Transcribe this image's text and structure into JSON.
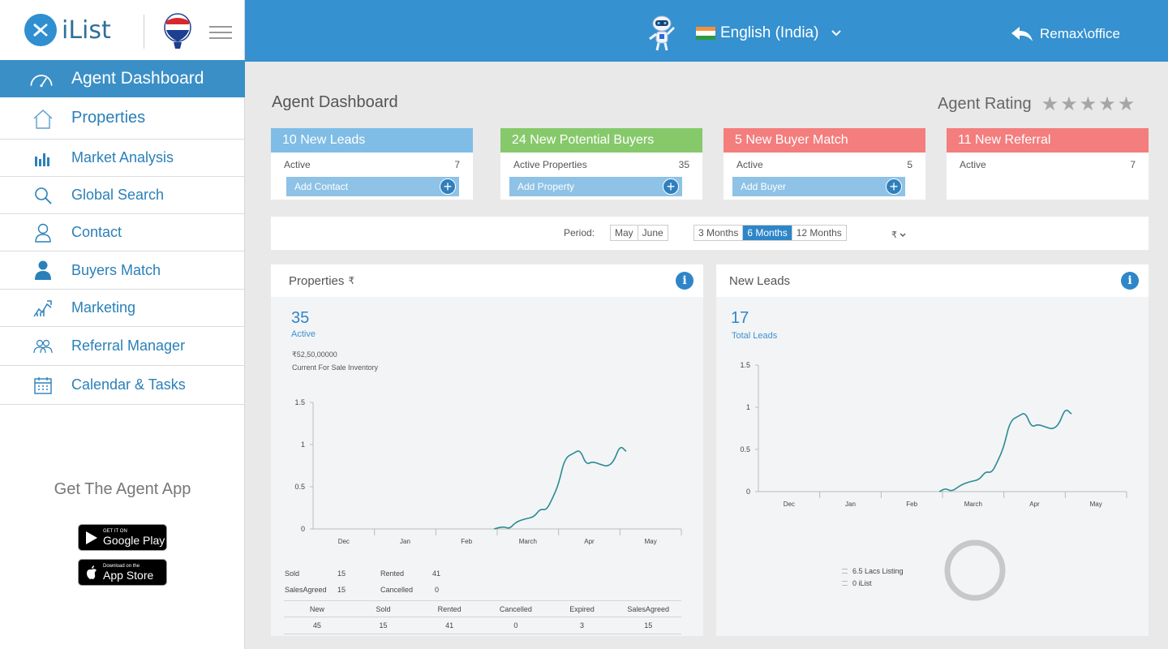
{
  "brand": {
    "name": "iList"
  },
  "sidebar": {
    "items": [
      {
        "label": "Agent Dashboard",
        "icon": "speedometer-icon",
        "active": true
      },
      {
        "label": "Properties",
        "icon": "home-icon"
      },
      {
        "label": "Market Analysis",
        "icon": "bar-chart-icon"
      },
      {
        "label": "Global Search",
        "icon": "search-icon"
      },
      {
        "label": "Contact",
        "icon": "user-icon"
      },
      {
        "label": "Buyers Match",
        "icon": "user-filled-icon"
      },
      {
        "label": "Marketing",
        "icon": "growth-icon"
      },
      {
        "label": "Referral Manager",
        "icon": "people-icon"
      },
      {
        "label": "Calendar & Tasks",
        "icon": "calendar-icon"
      }
    ],
    "get_app": "Get The Agent App",
    "google_play": {
      "small": "GET IT ON",
      "big": "Google Play"
    },
    "app_store": {
      "small": "Download on the",
      "big": "App Store"
    }
  },
  "header": {
    "language": "English (India)",
    "office": "Remax\\office",
    "accent": "#3591d0"
  },
  "main": {
    "title": "Agent Dashboard",
    "rating_label": "Agent Rating",
    "rating_stars": "★★★★★",
    "cards": [
      {
        "title": "10 New Leads",
        "row_label": "Active",
        "row_value": "7",
        "button": "Add Contact",
        "color": "#7fbde6"
      },
      {
        "title": "24 New Potential Buyers",
        "row_label": "Active Properties",
        "row_value": "35",
        "button": "Add Property",
        "color": "#86c96b"
      },
      {
        "title": "5 New Buyer Match",
        "row_label": "Active",
        "row_value": "5",
        "button": "Add Buyer",
        "color": "#f47d7d"
      },
      {
        "title": "11 New Referral",
        "row_label": "Active",
        "row_value": "7",
        "color": "#f47d7d"
      }
    ],
    "period": {
      "label": "Period:",
      "months": [
        "May",
        "June"
      ],
      "ranges": [
        "3 Months",
        "6 Months",
        "12 Months"
      ],
      "selected_range": "6 Months",
      "currency": "₹"
    },
    "properties_panel": {
      "title": "Properties",
      "currency": "₹",
      "count": "35",
      "count_label": "Active",
      "inventory_value": "₹52,50,00000",
      "inventory_label": "Current For Sale Inventory",
      "summary": [
        {
          "label": "Sold",
          "value": "15"
        },
        {
          "label": "Rented",
          "value": "41"
        },
        {
          "label": "SalesAgreed",
          "value": "15"
        },
        {
          "label": "Cancelled",
          "value": "0"
        }
      ],
      "table_headers": [
        "New",
        "Sold",
        "Rented",
        "Cancelled",
        "Expired",
        "SalesAgreed"
      ],
      "table_values": [
        "45",
        "15",
        "41",
        "0",
        "3",
        "15"
      ]
    },
    "leads_panel": {
      "title": "New Leads",
      "count": "17",
      "count_label": "Total Leads",
      "legend": [
        "6.5 Lacs Listing",
        "0 iList"
      ]
    }
  },
  "chart_data": [
    {
      "type": "line",
      "name": "properties-chart",
      "categories": [
        "Dec",
        "Jan",
        "Feb",
        "March",
        "Apr",
        "May"
      ],
      "ylim": [
        0,
        1.5
      ],
      "yticks": [
        "0",
        "0.5",
        "1",
        "1.5"
      ],
      "series": [
        {
          "color": "#2a8a94",
          "points": [
            [
              2.95,
              0.0
            ],
            [
              3.1,
              0.03
            ],
            [
              3.2,
              0.0
            ],
            [
              3.3,
              0.08
            ],
            [
              3.45,
              0.12
            ],
            [
              3.6,
              0.14
            ],
            [
              3.7,
              0.24
            ],
            [
              3.8,
              0.22
            ],
            [
              3.9,
              0.36
            ],
            [
              4.0,
              0.53
            ],
            [
              4.1,
              0.84
            ],
            [
              4.25,
              0.9
            ],
            [
              4.35,
              0.94
            ],
            [
              4.45,
              0.76
            ],
            [
              4.55,
              0.8
            ],
            [
              4.7,
              0.76
            ],
            [
              4.8,
              0.74
            ],
            [
              4.9,
              0.8
            ],
            [
              5.0,
              0.99
            ],
            [
              5.1,
              0.92
            ]
          ]
        }
      ]
    },
    {
      "type": "line",
      "name": "leads-chart",
      "categories": [
        "Dec",
        "Jan",
        "Feb",
        "March",
        "Apr",
        "May"
      ],
      "ylim": [
        0,
        1.5
      ],
      "yticks": [
        "0",
        "0.5",
        "1",
        "1.5"
      ],
      "series": [
        {
          "color": "#2a8a94",
          "points": [
            [
              2.95,
              0.0
            ],
            [
              3.05,
              0.04
            ],
            [
              3.15,
              0.0
            ],
            [
              3.3,
              0.08
            ],
            [
              3.45,
              0.12
            ],
            [
              3.6,
              0.14
            ],
            [
              3.7,
              0.24
            ],
            [
              3.8,
              0.22
            ],
            [
              3.9,
              0.36
            ],
            [
              4.0,
              0.53
            ],
            [
              4.1,
              0.84
            ],
            [
              4.25,
              0.9
            ],
            [
              4.35,
              0.94
            ],
            [
              4.45,
              0.76
            ],
            [
              4.55,
              0.8
            ],
            [
              4.7,
              0.76
            ],
            [
              4.8,
              0.74
            ],
            [
              4.9,
              0.8
            ],
            [
              5.0,
              0.99
            ],
            [
              5.1,
              0.92
            ]
          ]
        }
      ]
    }
  ]
}
